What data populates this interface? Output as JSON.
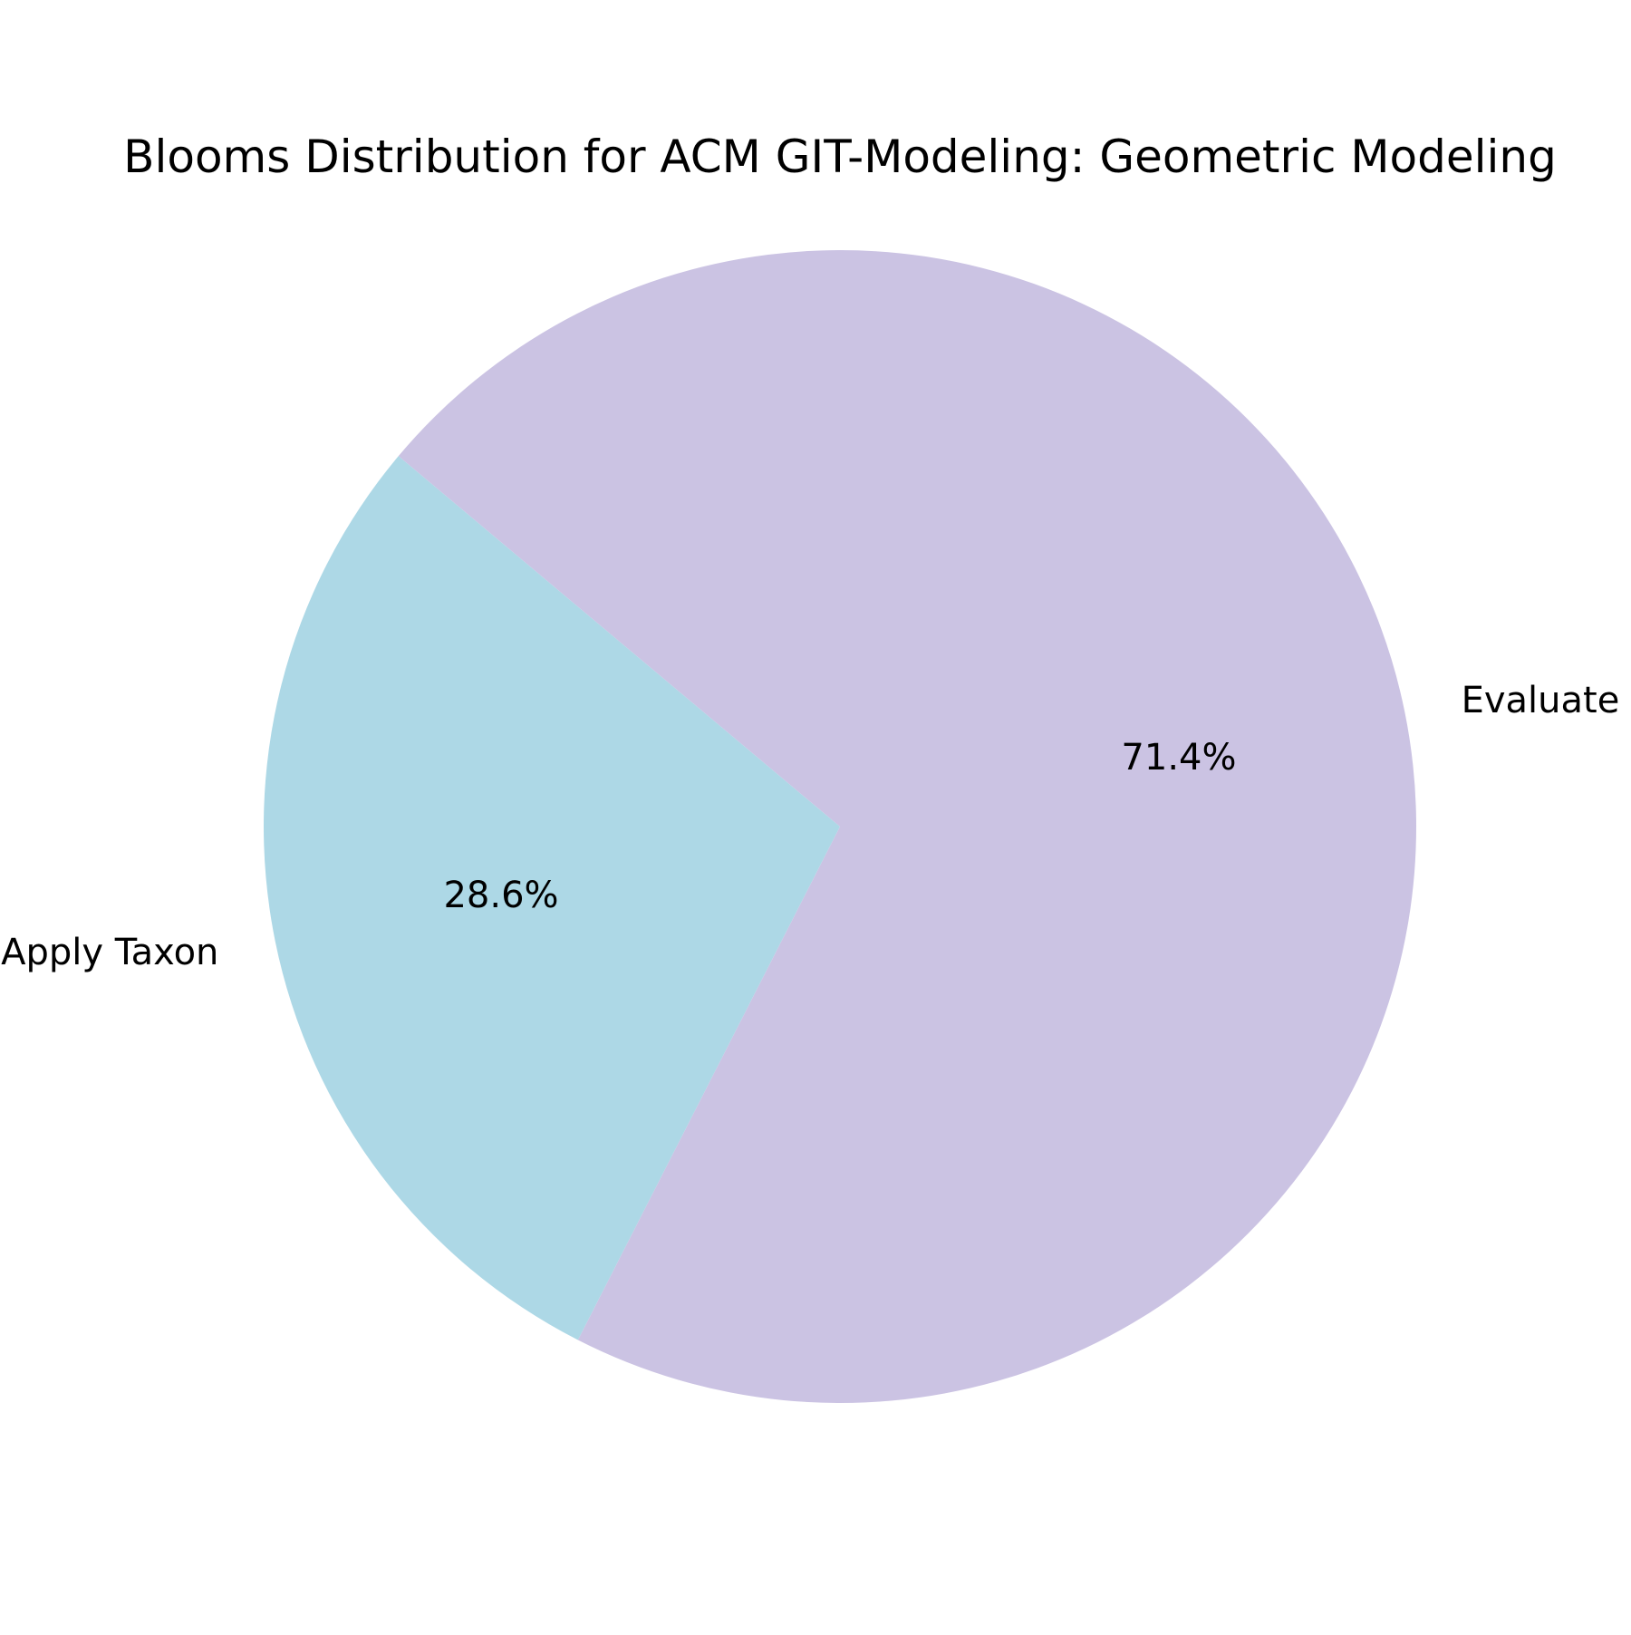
{
  "chart_data": {
    "type": "pie",
    "title": "Blooms Distribution for ACM GIT-Modeling: Geometric Modeling",
    "slices": [
      {
        "label": "Apply Taxon",
        "value": 28.6,
        "pct_label": "28.6%",
        "color": "#add8e6"
      },
      {
        "label": "Evaluate",
        "value": 71.4,
        "pct_label": "71.4%",
        "color": "#cbc3e3"
      }
    ],
    "start_angle_deg": 140,
    "direction": "counterclockwise"
  }
}
